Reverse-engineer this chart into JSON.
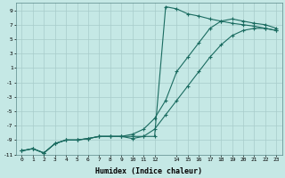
{
  "xlabel": "Humidex (Indice chaleur)",
  "bg_color": "#c5e8e5",
  "grid_color": "#a8ccca",
  "line_color": "#1a6b60",
  "xlim": [
    -0.5,
    23.5
  ],
  "ylim": [
    -11,
    10
  ],
  "yticks": [
    -11,
    -9,
    -7,
    -5,
    -3,
    -1,
    1,
    3,
    5,
    7,
    9
  ],
  "xticks": [
    0,
    1,
    2,
    3,
    4,
    5,
    6,
    7,
    8,
    9,
    10,
    11,
    12,
    14,
    15,
    16,
    17,
    18,
    19,
    20,
    21,
    22,
    23
  ],
  "curve1_x": [
    0,
    1,
    2,
    3,
    4,
    5,
    6,
    7,
    8,
    9,
    10,
    11,
    12,
    13,
    14,
    15,
    16,
    17,
    18,
    19,
    20,
    21,
    22,
    23
  ],
  "curve1_y": [
    -10.5,
    -10.2,
    -10.8,
    -9.5,
    -9.0,
    -9.0,
    -8.8,
    -8.5,
    -8.5,
    -8.5,
    -8.5,
    -8.5,
    -8.5,
    9.5,
    9.2,
    8.5,
    8.2,
    7.8,
    7.5,
    7.2,
    7.0,
    6.8,
    6.5,
    6.2
  ],
  "curve2_x": [
    0,
    1,
    2,
    3,
    4,
    5,
    6,
    7,
    8,
    9,
    10,
    11,
    12,
    13,
    14,
    15,
    16,
    17,
    18,
    19,
    20,
    21,
    22,
    23
  ],
  "curve2_y": [
    -10.5,
    -10.2,
    -10.8,
    -9.5,
    -9.0,
    -9.0,
    -8.8,
    -8.5,
    -8.5,
    -8.5,
    -8.2,
    -7.5,
    -6.0,
    -3.5,
    0.5,
    2.5,
    4.5,
    6.5,
    7.5,
    7.8,
    7.5,
    7.2,
    7.0,
    6.5
  ],
  "curve3_x": [
    0,
    1,
    2,
    3,
    4,
    5,
    6,
    7,
    8,
    9,
    10,
    11,
    12,
    13,
    14,
    15,
    16,
    17,
    18,
    19,
    20,
    21,
    22,
    23
  ],
  "curve3_y": [
    -10.5,
    -10.2,
    -10.8,
    -9.5,
    -9.0,
    -9.0,
    -8.8,
    -8.5,
    -8.5,
    -8.5,
    -8.8,
    -8.5,
    -7.5,
    -5.5,
    -3.5,
    -1.5,
    0.5,
    2.5,
    4.2,
    5.5,
    6.2,
    6.5,
    6.5,
    6.2
  ]
}
